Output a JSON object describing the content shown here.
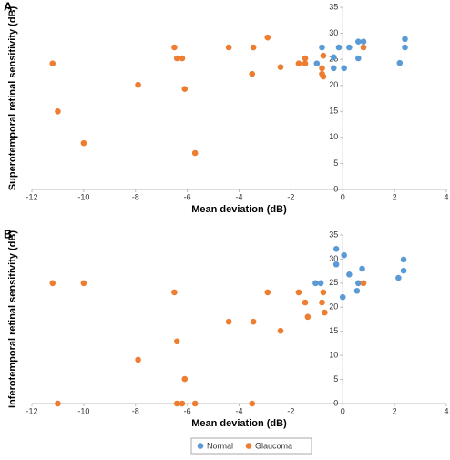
{
  "chart_data": [
    {
      "type": "scatter",
      "label": "A",
      "xlabel": "Mean deviation (dB)",
      "ylabel": "Superotemporal retinal sensitivity (dB)",
      "xlim": [
        -12,
        4
      ],
      "xticks": [
        -12,
        -10,
        -8,
        -6,
        -4,
        -2,
        0,
        2,
        4
      ],
      "ylim": [
        0,
        35
      ],
      "yticks": [
        0,
        5,
        10,
        15,
        20,
        25,
        30,
        35
      ],
      "series": [
        {
          "name": "Normal",
          "color": "#5b9bd5",
          "x": [
            -0.8,
            -1.0,
            -0.35,
            -0.35,
            -0.15,
            0.05,
            0.25,
            0.6,
            0.6,
            0.8,
            2.2,
            2.4,
            2.4
          ],
          "values": [
            27.3,
            24.2,
            23.3,
            25.4,
            27.3,
            23.3,
            27.3,
            25.2,
            28.4,
            28.4,
            24.3,
            27.3,
            28.9
          ]
        },
        {
          "name": "Glaucoma",
          "color": "#ed7d31",
          "x": [
            -11.2,
            -11,
            -10,
            -7.9,
            -6.5,
            -6.4,
            -6.2,
            -6.1,
            -5.7,
            -4.4,
            -3.45,
            -3.5,
            -2.9,
            -2.4,
            -1.7,
            -1.45,
            -1.45,
            -0.8,
            -0.8,
            -0.75,
            -0.75,
            0.8
          ],
          "values": [
            24.2,
            15,
            8.9,
            20.1,
            27.3,
            25.2,
            25.2,
            19.3,
            7,
            27.3,
            27.3,
            22.2,
            29.2,
            23.5,
            24.2,
            25.2,
            24.2,
            23.3,
            22.2,
            25.7,
            21.7,
            27.3
          ]
        }
      ]
    },
    {
      "type": "scatter",
      "label": "B",
      "xlabel": "Mean deviation (dB)",
      "ylabel": "Inferotemporal retinal sensitivity (dB)",
      "xlim": [
        -12,
        4
      ],
      "xticks": [
        -12,
        -10,
        -8,
        -6,
        -4,
        -2,
        0,
        2,
        4
      ],
      "ylim": [
        0,
        35
      ],
      "yticks": [
        0,
        5,
        10,
        15,
        20,
        25,
        30,
        35
      ],
      "series": [
        {
          "name": "Normal",
          "color": "#5b9bd5",
          "x": [
            -1.05,
            -0.85,
            -0.25,
            0.05,
            -0.25,
            0.25,
            0,
            0.55,
            0.6,
            0.75,
            2.15,
            2.35,
            2.35
          ],
          "values": [
            25,
            25,
            32.1,
            30.8,
            28.9,
            26.8,
            22.1,
            23.4,
            25,
            28,
            26.1,
            27.6,
            29.9
          ]
        },
        {
          "name": "Glaucoma",
          "color": "#ed7d31",
          "x": [
            -11.2,
            -11,
            -10,
            -7.9,
            -6.5,
            -6.4,
            -6.4,
            -6.2,
            -6.1,
            -5.7,
            -4.4,
            -3.5,
            -3.45,
            -2.9,
            -2.4,
            -1.7,
            -1.45,
            -1.35,
            -0.8,
            -0.75,
            -0.7,
            0.8
          ],
          "values": [
            25,
            0,
            25,
            9.1,
            23.1,
            12.9,
            0,
            0,
            5.1,
            0,
            17,
            0,
            17,
            23.1,
            15.1,
            23.1,
            21,
            18,
            21,
            23.1,
            18.9,
            25
          ]
        }
      ]
    }
  ]
}
